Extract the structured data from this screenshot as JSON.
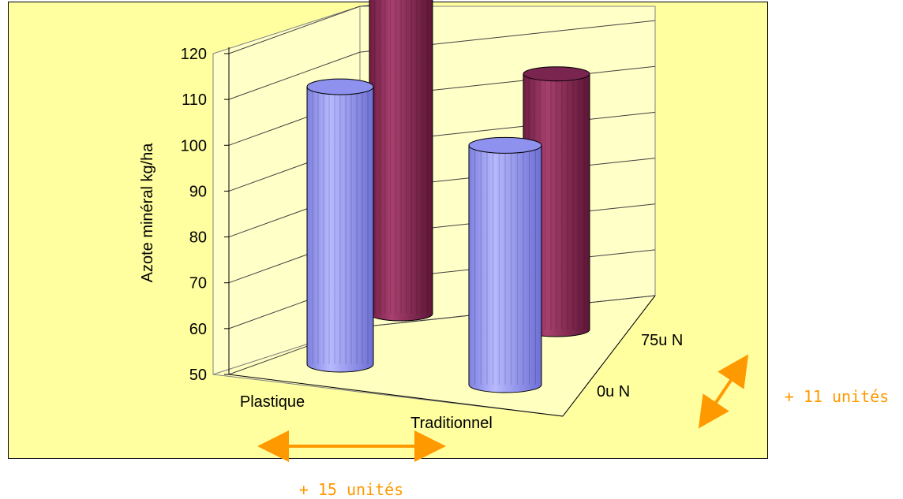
{
  "chart_data": {
    "type": "bar",
    "categories": [
      "Plastique",
      "Traditionnel"
    ],
    "series": [
      {
        "name": "0u N",
        "values": [
          101,
          94
        ],
        "color": "#9a9cf5"
      },
      {
        "name": "75u N",
        "values": [
          115,
          97
        ],
        "color": "#8c2a57"
      }
    ],
    "depth_labels": [
      "0u N",
      "75u N"
    ],
    "ylabel": "Azote minéral kg/ha",
    "ylim": [
      50,
      120
    ],
    "yticks": [
      50,
      60,
      70,
      80,
      90,
      100,
      110,
      120
    ],
    "grid": true,
    "annotations": {
      "horizontal": "+ 15 unités",
      "depth": "+ 11 unités"
    },
    "arrow_color": "#ff9900",
    "background_color": "#ffffa0"
  }
}
